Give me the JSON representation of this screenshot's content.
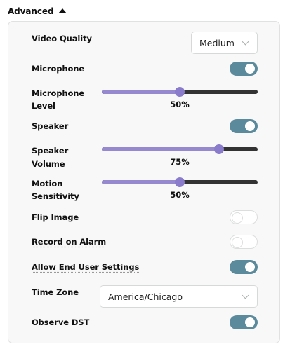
{
  "section": {
    "title": "Advanced"
  },
  "video_quality": {
    "label": "Video Quality",
    "value": "Medium"
  },
  "microphone": {
    "label": "Microphone",
    "on": true
  },
  "microphone_level": {
    "label_line1": "Microphone",
    "label_line2": "Level",
    "value": 50,
    "value_text": "50%"
  },
  "speaker": {
    "label": "Speaker",
    "on": true
  },
  "speaker_volume": {
    "label_line1": "Speaker",
    "label_line2": "Volume",
    "value": 75,
    "value_text": "75%"
  },
  "motion_sensitivity": {
    "label_line1": "Motion",
    "label_line2": "Sensitivity",
    "value": 50,
    "value_text": "50%"
  },
  "flip_image": {
    "label": "Flip Image",
    "on": false
  },
  "record_on_alarm": {
    "label": "Record on Alarm",
    "on": false
  },
  "allow_end_user_settings": {
    "label": "Allow End User Settings",
    "on": true
  },
  "time_zone": {
    "label": "Time Zone",
    "value": "America/Chicago"
  },
  "observe_dst": {
    "label": "Observe DST",
    "on": true
  },
  "colors": {
    "toggle_on": "#5a8a9b",
    "slider_fill": "#9689d0",
    "slider_thumb": "#8a7ccb",
    "slider_track": "#333333"
  }
}
